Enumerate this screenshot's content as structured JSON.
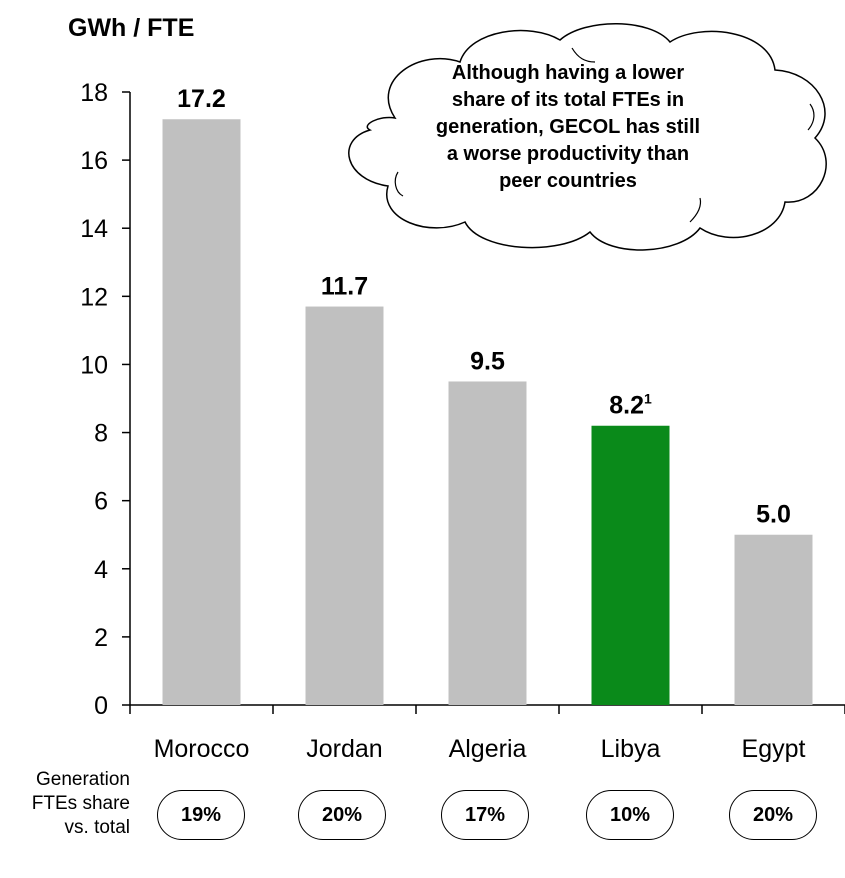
{
  "chart_data": {
    "type": "bar",
    "ylabel": "GWh / FTE",
    "ylim": [
      0,
      18
    ],
    "yticks": [
      0,
      2,
      4,
      6,
      8,
      10,
      12,
      14,
      16,
      18
    ],
    "categories": [
      "Morocco",
      "Jordan",
      "Algeria",
      "Libya",
      "Egypt"
    ],
    "values": [
      17.2,
      11.7,
      9.5,
      8.2,
      5.0
    ],
    "value_labels": [
      "17.2",
      "11.7",
      "9.5",
      "8.2",
      "5.0"
    ],
    "footnote_marks": [
      "",
      "",
      "",
      "1",
      ""
    ],
    "highlight_category": "Libya",
    "colors": {
      "default_bar": "#c0c0c0",
      "highlight_bar": "#0a8a1a"
    },
    "grid": false,
    "legend": "none"
  },
  "callout": {
    "lines": [
      "Although having a lower",
      "share of its total FTEs in",
      "generation, GECOL has still",
      "a worse productivity than",
      "peer countries"
    ]
  },
  "generation_share": {
    "label_lines": [
      "Generation",
      "FTEs share",
      "vs. total"
    ],
    "values": [
      "19%",
      "20%",
      "17%",
      "10%",
      "20%"
    ]
  }
}
